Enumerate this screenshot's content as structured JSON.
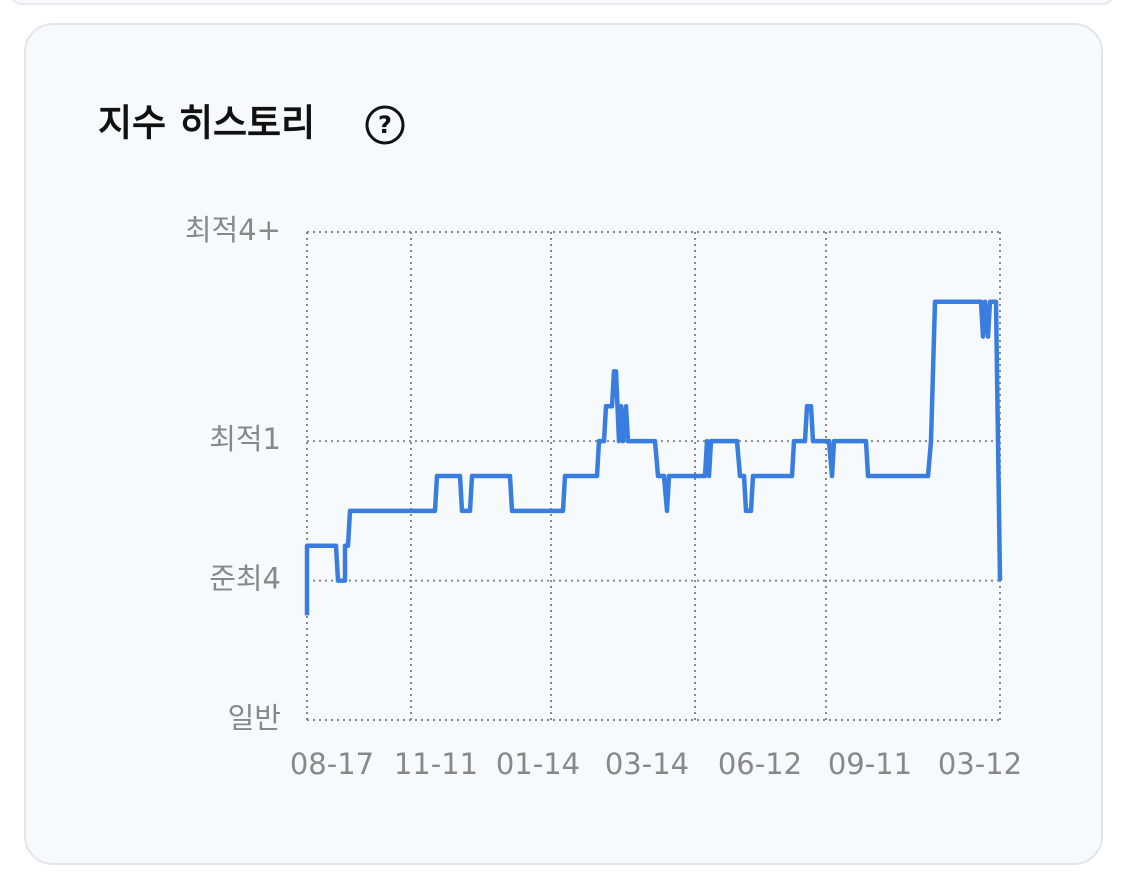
{
  "chart_data": {
    "type": "line",
    "title": "지수 히스토리",
    "x": [
      0,
      0,
      29,
      31,
      38,
      38,
      41,
      43,
      128,
      130,
      153,
      155,
      163,
      165,
      203,
      205,
      256,
      258,
      290,
      292,
      297,
      299,
      305,
      307,
      309,
      312,
      314,
      316,
      319,
      321,
      348,
      351,
      357,
      360,
      362,
      398,
      400,
      402,
      404,
      430,
      433,
      437,
      439,
      444,
      446,
      485,
      487,
      498,
      500,
      504,
      506,
      522,
      525,
      527,
      559,
      561,
      621,
      624,
      628,
      674,
      676,
      678,
      681,
      683,
      689,
      693
    ],
    "series": [
      {
        "color": "#3a7de0",
        "values": [
          3,
          5,
          5,
          4,
          4,
          5,
          5,
          6,
          6,
          7,
          7,
          6,
          6,
          7,
          7,
          6,
          6,
          7,
          7,
          8,
          8,
          9,
          9,
          10,
          10,
          8,
          9,
          8,
          9,
          8,
          8,
          7,
          7,
          6,
          7,
          7,
          8,
          7,
          8,
          8,
          7,
          7,
          6,
          6,
          7,
          7,
          8,
          8,
          9,
          9,
          8,
          8,
          7,
          8,
          8,
          7,
          7,
          8,
          12,
          12,
          11,
          12,
          11,
          12,
          12,
          4
        ]
      }
    ],
    "xlim": [
      0,
      693
    ],
    "xticks": [
      {
        "value": 25,
        "label": "08-17"
      },
      {
        "value": 129,
        "label": "11-11"
      },
      {
        "value": 231,
        "label": "01-14"
      },
      {
        "value": 340,
        "label": "03-14"
      },
      {
        "value": 453,
        "label": "06-12"
      },
      {
        "value": 563,
        "label": "09-11"
      },
      {
        "value": 673,
        "label": "03-12"
      }
    ],
    "xgrid": [
      0,
      104,
      244,
      388,
      519,
      693
    ],
    "ylim": [
      0,
      14
    ],
    "yticks": [
      {
        "value": 0,
        "label": "일반"
      },
      {
        "value": 4,
        "label": "준최4"
      },
      {
        "value": 8,
        "label": "최적1"
      },
      {
        "value": 14,
        "label": "최적4+"
      }
    ],
    "grid": true
  }
}
